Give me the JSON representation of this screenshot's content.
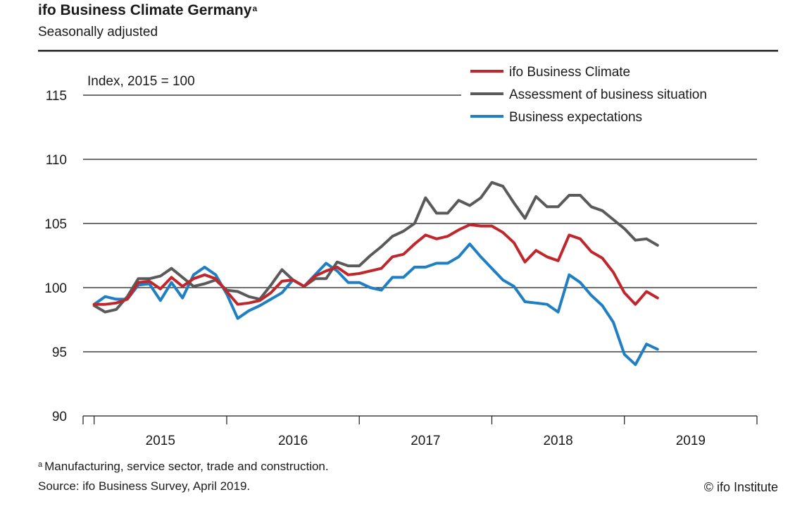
{
  "header": {
    "title": "ifo Business Climate Germany",
    "title_sup": "a",
    "subtitle": "Seasonally adjusted"
  },
  "footer": {
    "footnote_mark": "a",
    "footnote": "Manufacturing, service sector, trade and construction.",
    "source": "Source: ifo Business Survey, April 2019.",
    "copyright": "© ifo Institute"
  },
  "chart_data": {
    "type": "line",
    "ylabel": "Index, 2015 = 100",
    "ylim": [
      90,
      115
    ],
    "yticks": [
      90,
      95,
      100,
      105,
      110,
      115
    ],
    "xlim": [
      "2014-12",
      "2020-01"
    ],
    "year_labels": [
      "2015",
      "2016",
      "2017",
      "2018",
      "2019"
    ],
    "grid": true,
    "legend_position": "top-right",
    "x": [
      "2015-01",
      "2015-02",
      "2015-03",
      "2015-04",
      "2015-05",
      "2015-06",
      "2015-07",
      "2015-08",
      "2015-09",
      "2015-10",
      "2015-11",
      "2015-12",
      "2016-01",
      "2016-02",
      "2016-03",
      "2016-04",
      "2016-05",
      "2016-06",
      "2016-07",
      "2016-08",
      "2016-09",
      "2016-10",
      "2016-11",
      "2016-12",
      "2017-01",
      "2017-02",
      "2017-03",
      "2017-04",
      "2017-05",
      "2017-06",
      "2017-07",
      "2017-08",
      "2017-09",
      "2017-10",
      "2017-11",
      "2017-12",
      "2018-01",
      "2018-02",
      "2018-03",
      "2018-04",
      "2018-05",
      "2018-06",
      "2018-07",
      "2018-08",
      "2018-09",
      "2018-10",
      "2018-11",
      "2018-12",
      "2019-01",
      "2019-02",
      "2019-03",
      "2019-04"
    ],
    "series": [
      {
        "name": "ifo Business Climate",
        "color": "#c0272d",
        "values": [
          98.7,
          98.7,
          98.8,
          99.1,
          100.4,
          100.5,
          99.9,
          100.8,
          100.1,
          100.7,
          101.0,
          100.7,
          99.7,
          98.7,
          98.8,
          99.0,
          99.6,
          100.5,
          100.6,
          100.1,
          100.9,
          101.3,
          101.6,
          101.0,
          101.1,
          101.3,
          101.5,
          102.4,
          102.6,
          103.4,
          104.1,
          103.8,
          104.0,
          104.5,
          104.9,
          104.8,
          104.8,
          104.3,
          103.5,
          102.0,
          102.9,
          102.4,
          102.1,
          104.1,
          103.8,
          102.8,
          102.3,
          101.2,
          99.6,
          98.7,
          99.7,
          99.2
        ]
      },
      {
        "name": "Assessment of business situation",
        "color": "#5a5a5a",
        "values": [
          98.6,
          98.1,
          98.3,
          99.3,
          100.7,
          100.7,
          100.9,
          101.5,
          100.8,
          100.1,
          100.3,
          100.6,
          99.8,
          99.7,
          99.3,
          99.1,
          100.2,
          101.4,
          100.6,
          100.1,
          100.7,
          100.7,
          102.0,
          101.7,
          101.7,
          102.5,
          103.2,
          104.0,
          104.4,
          105.0,
          107.0,
          105.8,
          105.8,
          106.8,
          106.4,
          107.0,
          108.2,
          107.9,
          106.6,
          105.4,
          107.1,
          106.3,
          106.3,
          107.2,
          107.2,
          106.3,
          106.0,
          105.3,
          104.6,
          103.7,
          103.8,
          103.3
        ]
      },
      {
        "name": "Business expectations",
        "color": "#1f7fc2",
        "values": [
          98.7,
          99.3,
          99.1,
          99.1,
          100.2,
          100.3,
          99.0,
          100.4,
          99.2,
          101.0,
          101.6,
          101.0,
          99.5,
          97.6,
          98.2,
          98.6,
          99.1,
          99.6,
          100.6,
          100.1,
          101.0,
          101.9,
          101.3,
          100.4,
          100.4,
          100.0,
          99.8,
          100.8,
          100.8,
          101.6,
          101.6,
          101.9,
          101.9,
          102.4,
          103.4,
          102.4,
          101.5,
          100.6,
          100.1,
          98.9,
          98.8,
          98.7,
          98.1,
          101.0,
          100.4,
          99.4,
          98.6,
          97.3,
          94.8,
          94.0,
          95.6,
          95.2
        ]
      }
    ]
  }
}
